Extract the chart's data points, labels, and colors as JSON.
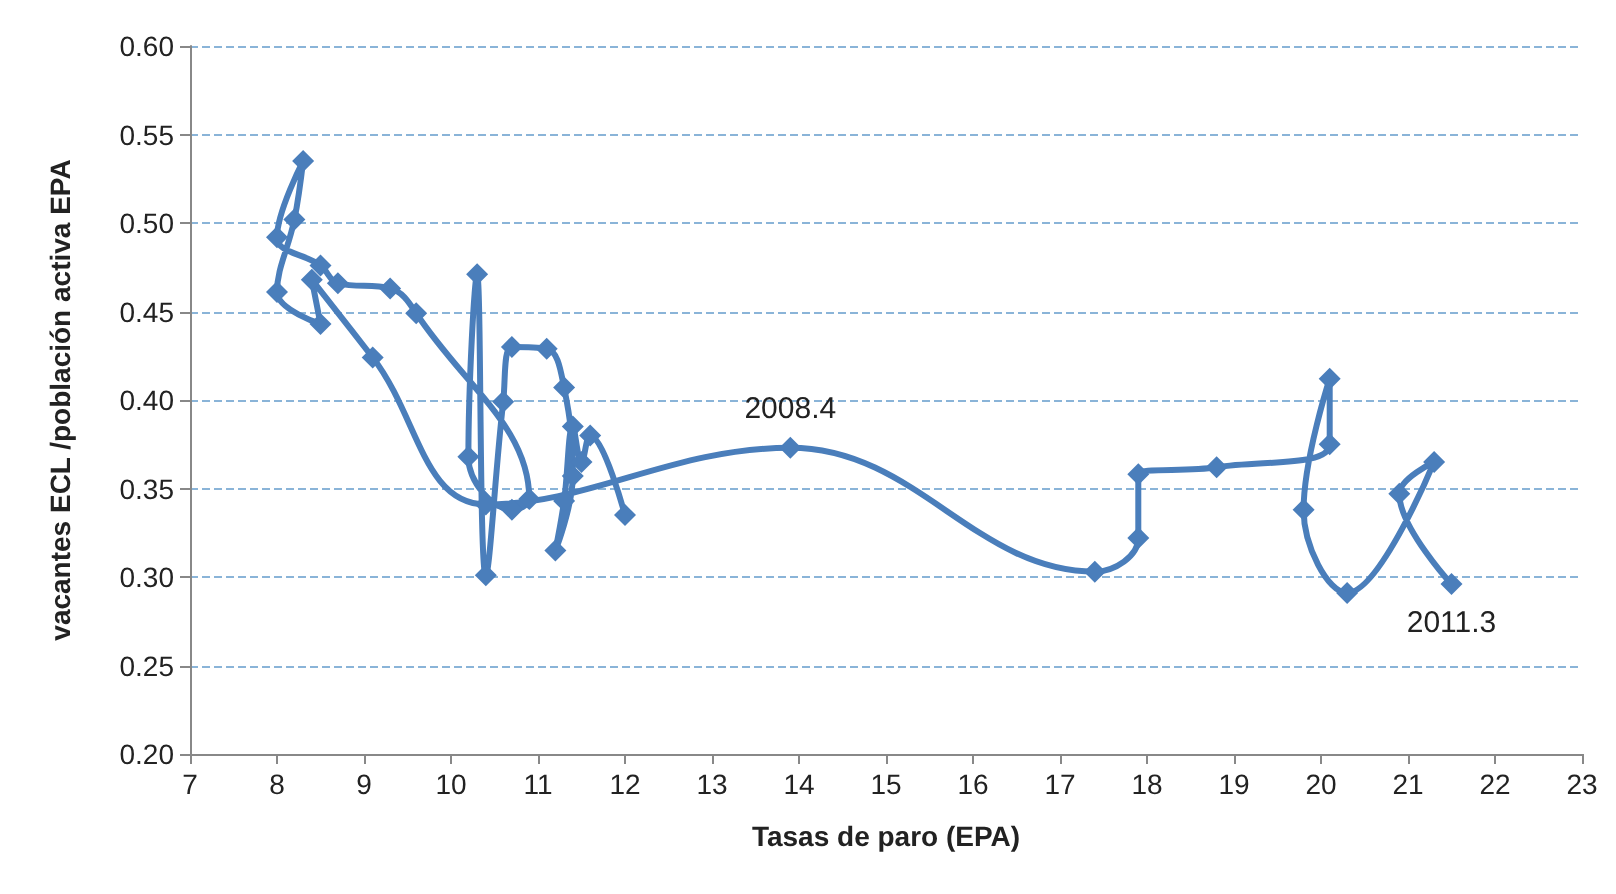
{
  "chart_data": {
    "type": "line",
    "xlabel": "Tasas de paro (EPA)",
    "ylabel": "vacantes ECL /población activa EPA",
    "series": [
      {
        "color": "#4a7ebb",
        "x": [
          12.0,
          11.6,
          11.5,
          11.4,
          11.3,
          11.2,
          11.4,
          11.3,
          11.1,
          10.7,
          10.6,
          10.4,
          10.3,
          10.2,
          10.7,
          10.9,
          9.6,
          9.3,
          8.7,
          8.5,
          8.0,
          8.3,
          8.2,
          8.0,
          8.5,
          8.4,
          9.1,
          10.4,
          13.9,
          17.4,
          17.9,
          17.9,
          18.8,
          20.1,
          20.1,
          19.8,
          20.3,
          21.3,
          20.9,
          21.5
        ],
        "values": [
          0.335,
          0.38,
          0.365,
          0.385,
          0.343,
          0.315,
          0.357,
          0.407,
          0.429,
          0.43,
          0.399,
          0.301,
          0.471,
          0.368,
          0.338,
          0.344,
          0.449,
          0.463,
          0.466,
          0.476,
          0.492,
          0.535,
          0.502,
          0.461,
          0.443,
          0.468,
          0.424,
          0.341,
          0.373,
          0.303,
          0.322,
          0.358,
          0.362,
          0.375,
          0.412,
          0.338,
          0.291,
          0.365,
          0.347,
          0.296
        ]
      }
    ],
    "annotations": [
      {
        "text": "2008.4",
        "x": 13.9,
        "y": 0.373
      },
      {
        "text": "2011.3",
        "x": 21.5,
        "y": 0.296
      }
    ],
    "xlim": [
      7,
      23
    ],
    "xticks": [
      7,
      8,
      9,
      10,
      11,
      12,
      13,
      14,
      15,
      16,
      17,
      18,
      19,
      20,
      21,
      22,
      23
    ],
    "ylim": [
      0.2,
      0.6
    ],
    "yticks": [
      {
        "value": 0.2,
        "label": "0.20"
      },
      {
        "value": 0.25,
        "label": "0.25"
      },
      {
        "value": 0.3,
        "label": "0.30"
      },
      {
        "value": 0.35,
        "label": "0.35"
      },
      {
        "value": 0.4,
        "label": "0.40"
      },
      {
        "value": 0.45,
        "label": "0.45"
      },
      {
        "value": 0.5,
        "label": "0.50"
      },
      {
        "value": 0.55,
        "label": "0.55"
      },
      {
        "value": 0.6,
        "label": "0.60"
      }
    ],
    "grid": "y",
    "marker": "diamond",
    "line_style": "solid"
  }
}
